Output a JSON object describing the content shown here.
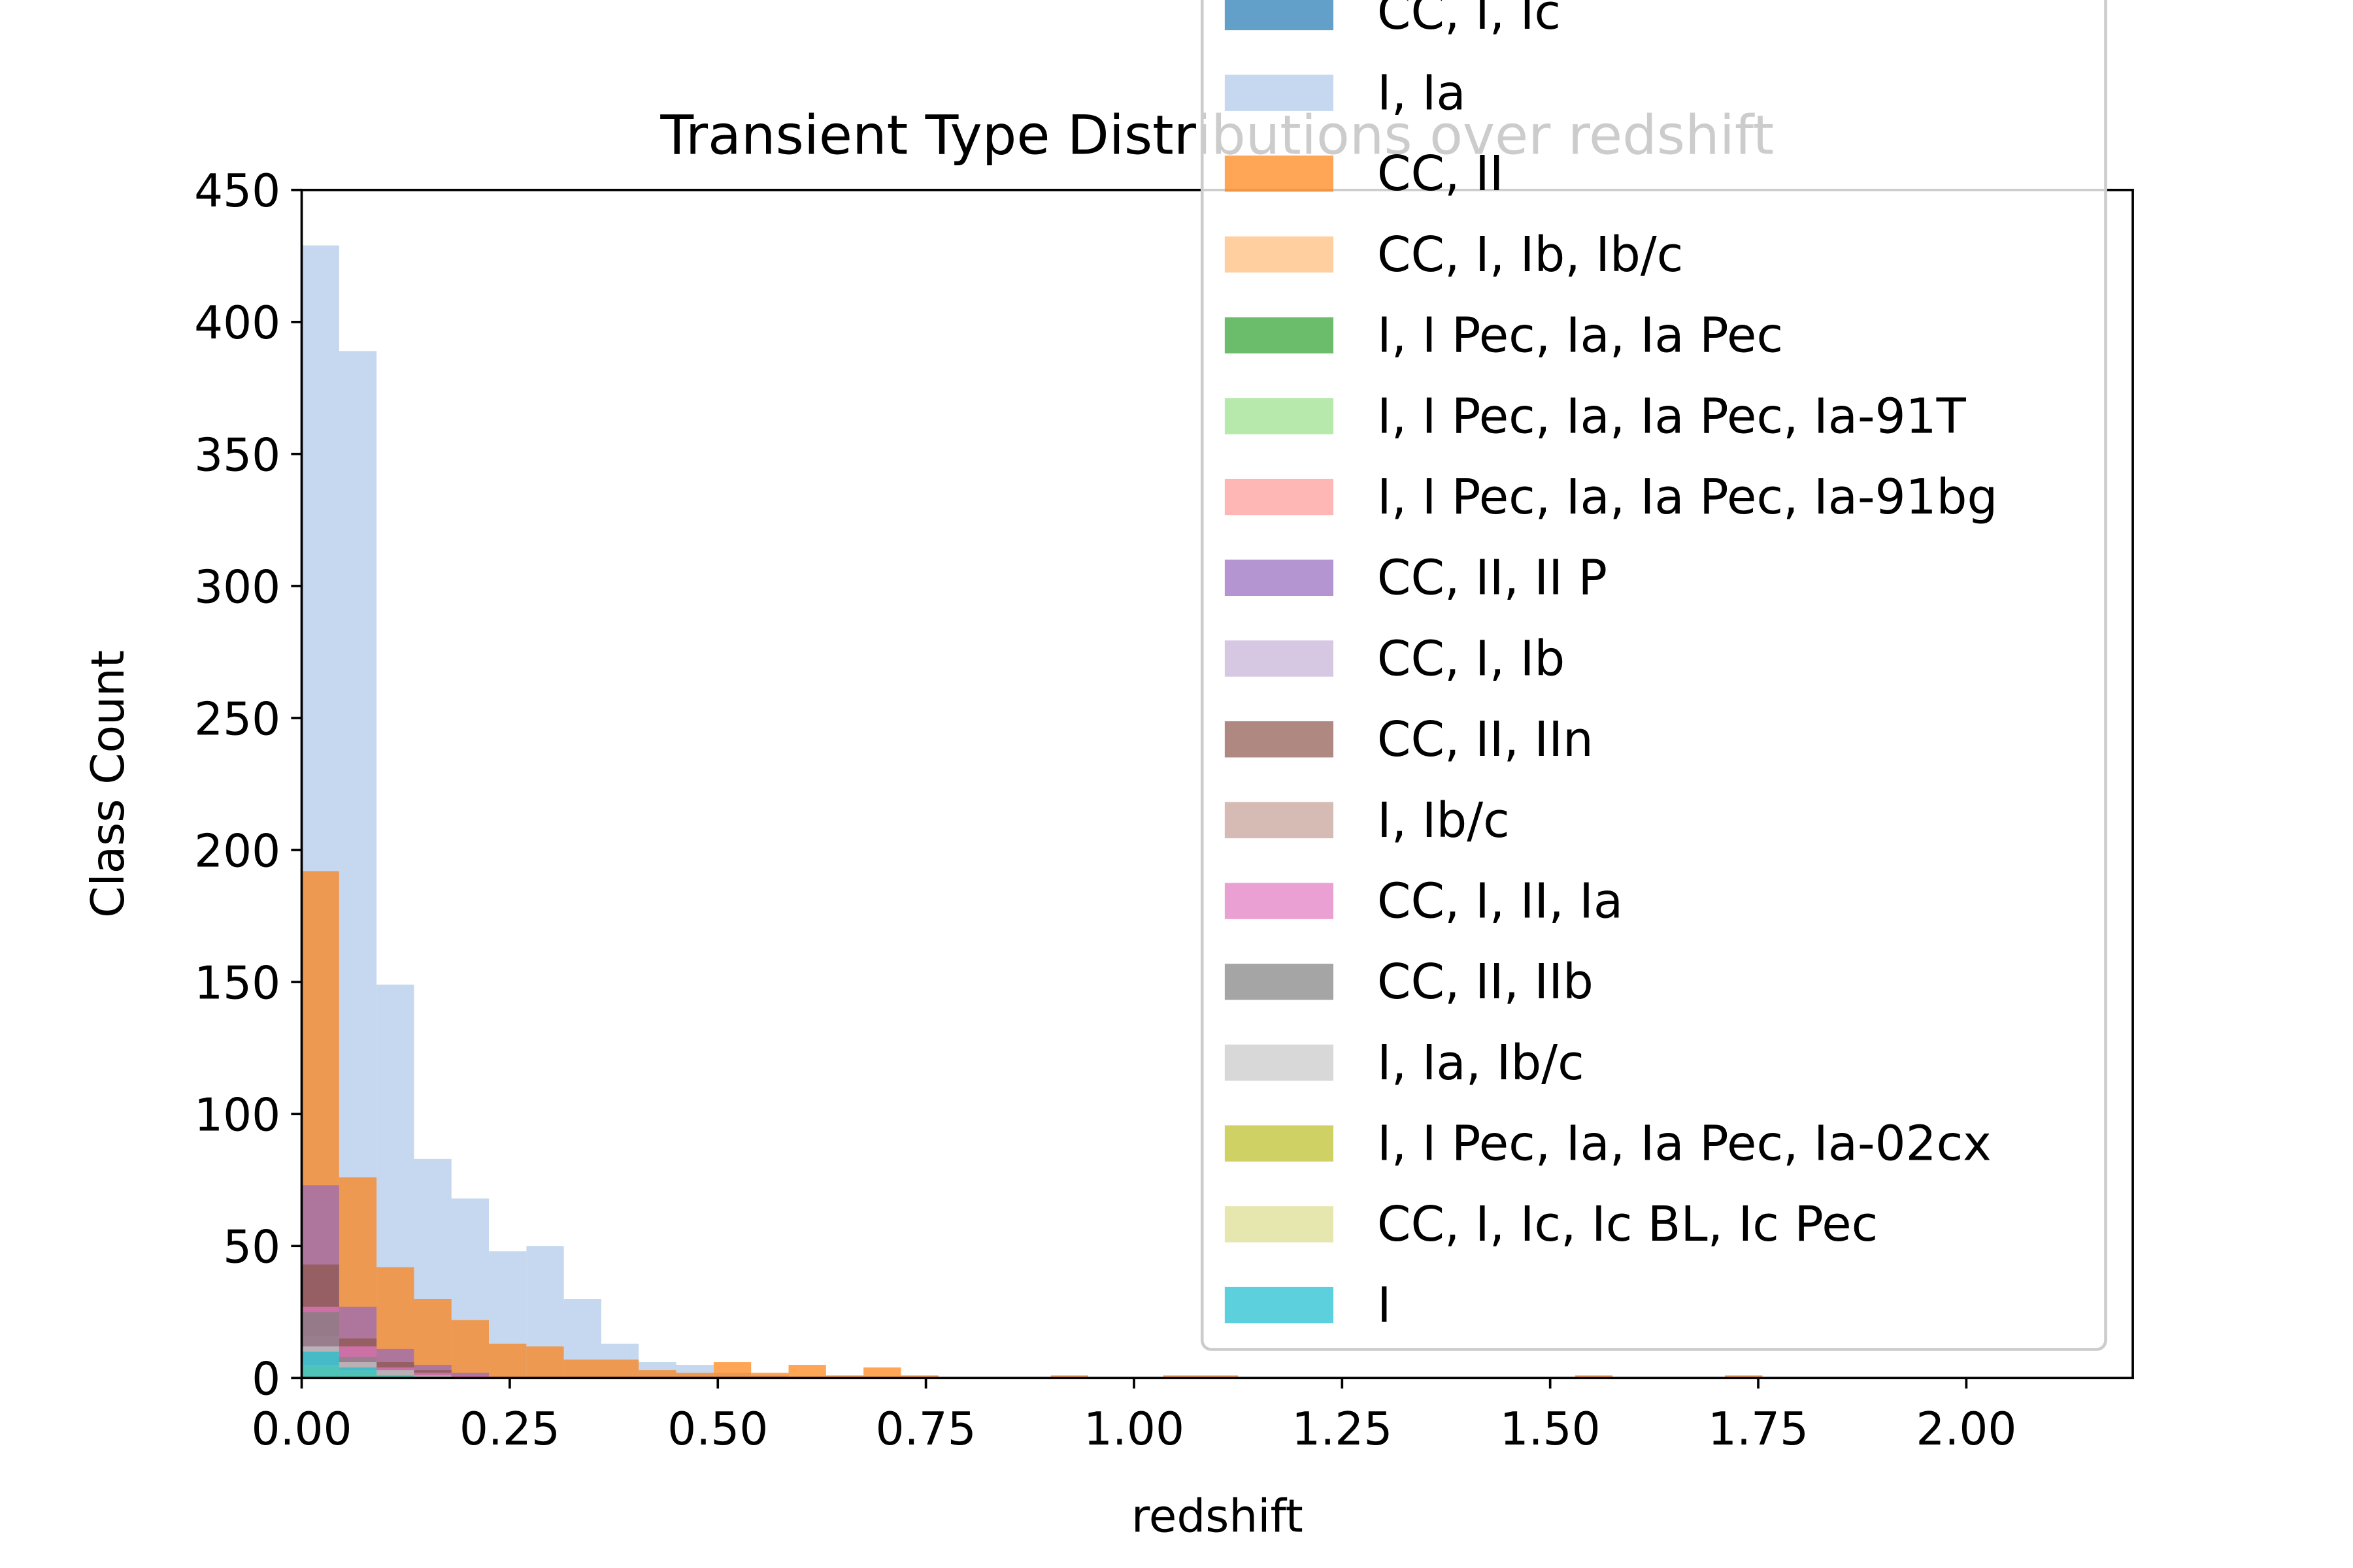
{
  "chart_data": {
    "type": "bar",
    "title": "Transient Type Distributions over redshift",
    "xlabel": "redshift",
    "ylabel": "Class Count",
    "xlim": [
      0,
      2.2
    ],
    "ylim": [
      0,
      450
    ],
    "bin_width": 0.045,
    "x_ticks": [
      0,
      0.25,
      0.5,
      0.75,
      1.0,
      1.25,
      1.5,
      1.75,
      2.0
    ],
    "x_tick_labels": [
      "0.00",
      "0.25",
      "0.50",
      "0.75",
      "1.00",
      "1.25",
      "1.50",
      "1.75",
      "2.00"
    ],
    "y_ticks": [
      0,
      50,
      100,
      150,
      200,
      250,
      300,
      350,
      400,
      450
    ],
    "y_tick_labels": [
      "0",
      "50",
      "100",
      "150",
      "200",
      "250",
      "300",
      "350",
      "400",
      "450"
    ],
    "legend_position": "upper-right",
    "series": [
      {
        "name": "CC, I, Ic",
        "color": "#1f77b4",
        "values": [
          4,
          2,
          1
        ]
      },
      {
        "name": "I, Ia",
        "color": "#aec7e8",
        "values": [
          429,
          389,
          149,
          83,
          68,
          48,
          50,
          30,
          13,
          6,
          5,
          2,
          1
        ]
      },
      {
        "name": "CC, II",
        "color": "#ff7f0e",
        "values": [
          192,
          76,
          42,
          30,
          22,
          13,
          12,
          7,
          7,
          3,
          2,
          6,
          2,
          5,
          1,
          4,
          1,
          0,
          0,
          0,
          1,
          0,
          0,
          1,
          1,
          0,
          0,
          0,
          0,
          0,
          0,
          0,
          0,
          0,
          1,
          0,
          0,
          0,
          1
        ]
      },
      {
        "name": "CC, I, Ib, Ib/c",
        "color": "#ffbb78",
        "values": [
          6,
          3,
          1
        ]
      },
      {
        "name": "I, I Pec, Ia, Ia Pec",
        "color": "#2ca02c",
        "values": [
          5,
          3,
          1
        ]
      },
      {
        "name": "I, I Pec, Ia, Ia Pec, Ia-91T",
        "color": "#98df8a",
        "values": [
          4,
          2,
          1
        ]
      },
      {
        "name": "I, I Pec, Ia, Ia Pec, Ia-91bg",
        "color": "#ff9896",
        "values": [
          6,
          4,
          2
        ]
      },
      {
        "name": "CC, II, II P",
        "color": "#9467bd",
        "values": [
          73,
          27,
          11,
          5,
          2
        ]
      },
      {
        "name": "CC, I, Ib",
        "color": "#c5b0d5",
        "values": [
          9,
          5,
          2,
          1
        ]
      },
      {
        "name": "CC, II, IIn",
        "color": "#8c564b",
        "values": [
          43,
          15,
          6,
          3,
          1
        ]
      },
      {
        "name": "I, Ib/c",
        "color": "#c49c94",
        "values": [
          16,
          8,
          3,
          1
        ]
      },
      {
        "name": "CC, I, II, Ia",
        "color": "#e377c2",
        "values": [
          27,
          12,
          4,
          2,
          1
        ]
      },
      {
        "name": "CC, II, IIb",
        "color": "#7f7f7f",
        "values": [
          25,
          8,
          3,
          1
        ]
      },
      {
        "name": "I, Ia, Ib/c",
        "color": "#c7c7c7",
        "values": [
          12,
          6,
          3,
          1
        ]
      },
      {
        "name": "I, I Pec, Ia, Ia Pec, Ia-02cx",
        "color": "#bcbd22",
        "values": [
          4,
          2,
          1
        ]
      },
      {
        "name": "CC, I, Ic, Ic BL, Ic Pec",
        "color": "#dbdb8d",
        "values": [
          5,
          3,
          1
        ]
      },
      {
        "name": "I",
        "color": "#17becf",
        "values": [
          10,
          4,
          1
        ]
      }
    ]
  }
}
